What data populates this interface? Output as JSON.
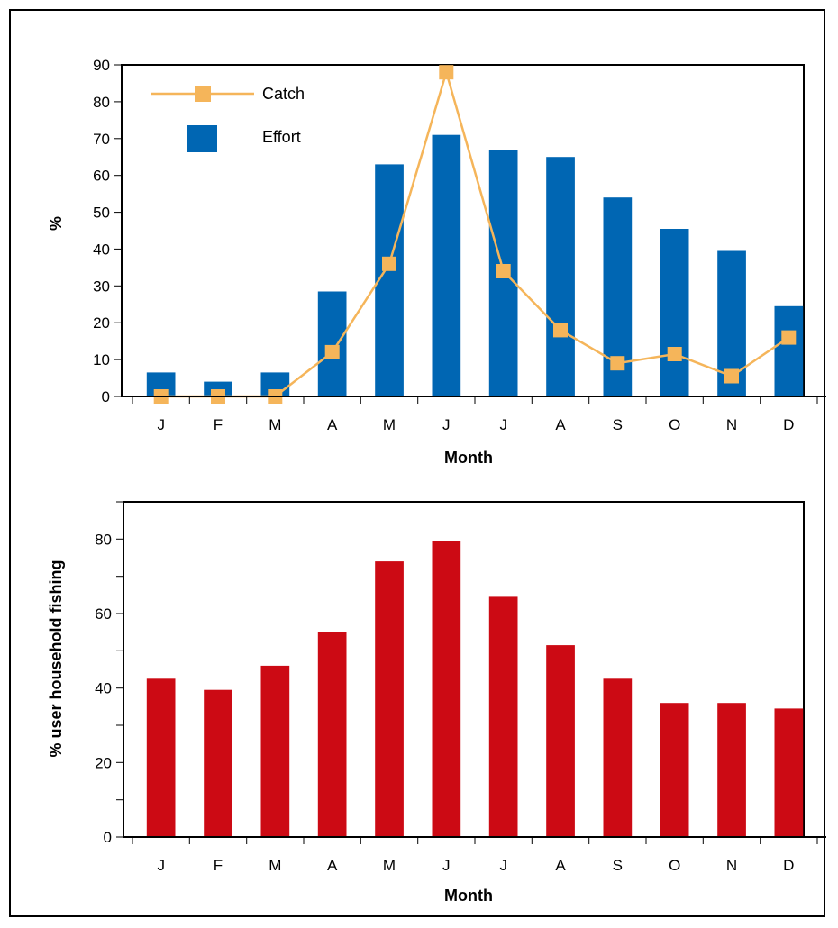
{
  "chart_data": [
    {
      "type": "bar",
      "categories": [
        "J",
        "F",
        "M",
        "A",
        "M",
        "J",
        "J",
        "A",
        "S",
        "O",
        "N",
        "D"
      ],
      "series": [
        {
          "name": "Effort",
          "type": "bar",
          "color": "#0066b3",
          "values": [
            6.5,
            4,
            6.5,
            28.5,
            63,
            71,
            67,
            65,
            54,
            45.5,
            39.5,
            24.5
          ]
        },
        {
          "name": "Catch",
          "type": "line",
          "color": "#f5b55a",
          "values": [
            0,
            0,
            0,
            12,
            36,
            88,
            34,
            18,
            9,
            11.5,
            5.5,
            16
          ]
        }
      ],
      "xlabel": "Month",
      "ylabel": "%",
      "ylim": [
        0,
        90
      ],
      "yticks": [
        0,
        10,
        20,
        30,
        40,
        50,
        60,
        70,
        80,
        90
      ],
      "legend": "top-left"
    },
    {
      "type": "bar",
      "categories": [
        "J",
        "F",
        "M",
        "A",
        "M",
        "J",
        "J",
        "A",
        "S",
        "O",
        "N",
        "D"
      ],
      "series": [
        {
          "color": "#cc0a14",
          "values": [
            42.5,
            39.5,
            46,
            55,
            74,
            79.5,
            64.5,
            51.5,
            42.5,
            36,
            36,
            34.5
          ]
        }
      ],
      "xlabel": "Month",
      "ylabel": "% user household fishing",
      "ylim": [
        0,
        90
      ],
      "yticks": [
        0,
        20,
        40,
        60,
        80
      ]
    }
  ]
}
